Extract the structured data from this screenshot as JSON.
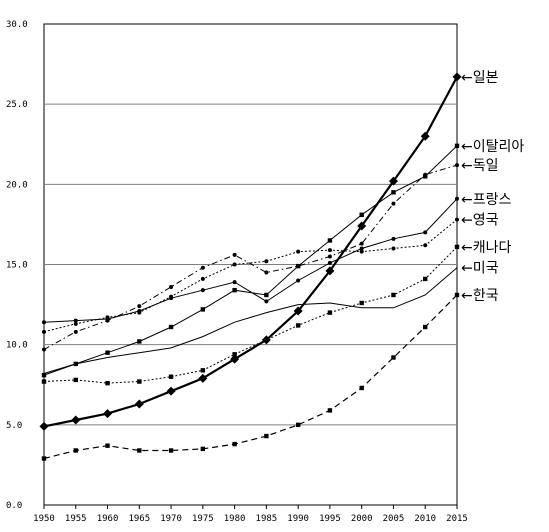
{
  "chart_data": {
    "type": "line",
    "title": "",
    "xlabel": "",
    "ylabel": "",
    "x": [
      1950,
      1955,
      1960,
      1965,
      1970,
      1975,
      1980,
      1985,
      1990,
      1995,
      2000,
      2005,
      2010,
      2015
    ],
    "x_ticks": [
      "1950",
      "1955",
      "1960",
      "1965",
      "1970",
      "1975",
      "1980",
      "1985",
      "1990",
      "1995",
      "2000",
      "2005",
      "2010",
      "2015"
    ],
    "y_ticks": [
      "0.0",
      "5.0",
      "10.0",
      "15.0",
      "20.0",
      "25.0",
      "30.0"
    ],
    "ylim": [
      0,
      30
    ],
    "grid": "horizontal",
    "legend": "right-end labels",
    "series": [
      {
        "name": "←일본",
        "style": "solid-bold",
        "marker": "diamond",
        "values": [
          4.9,
          5.3,
          5.7,
          6.3,
          7.1,
          7.9,
          9.1,
          10.3,
          12.1,
          14.6,
          17.4,
          20.2,
          23.0,
          26.7
        ]
      },
      {
        "name": "←이탈리아",
        "style": "solid",
        "marker": "square",
        "values": [
          8.1,
          8.8,
          9.5,
          10.2,
          11.1,
          12.2,
          13.4,
          13.1,
          14.9,
          16.5,
          18.1,
          19.5,
          20.5,
          22.4
        ]
      },
      {
        "name": "←독일",
        "style": "dashdot",
        "marker": "dot",
        "values": [
          9.7,
          10.8,
          11.5,
          12.4,
          13.6,
          14.8,
          15.6,
          14.5,
          14.9,
          15.5,
          16.3,
          18.8,
          20.6,
          21.2
        ]
      },
      {
        "name": "←프랑스",
        "style": "solid",
        "marker": "dot",
        "values": [
          11.4,
          11.5,
          11.6,
          12.1,
          12.9,
          13.4,
          13.9,
          12.7,
          14.0,
          15.1,
          16.0,
          16.6,
          17.0,
          19.1
        ]
      },
      {
        "name": "←영국",
        "style": "dotted",
        "marker": "dot",
        "values": [
          10.8,
          11.3,
          11.7,
          12.0,
          13.0,
          14.1,
          15.0,
          15.2,
          15.8,
          15.9,
          15.8,
          16.0,
          16.2,
          17.8
        ]
      },
      {
        "name": "←캐나다",
        "style": "dotted",
        "marker": "square",
        "values": [
          7.7,
          7.8,
          7.6,
          7.7,
          8.0,
          8.4,
          9.4,
          10.3,
          11.2,
          12.0,
          12.6,
          13.1,
          14.1,
          16.1
        ]
      },
      {
        "name": "←미국",
        "style": "solid",
        "marker": "none",
        "values": [
          8.2,
          8.8,
          9.2,
          9.5,
          9.8,
          10.5,
          11.4,
          12.0,
          12.5,
          12.6,
          12.3,
          12.3,
          13.1,
          14.8
        ]
      },
      {
        "name": "←한국",
        "style": "dashed",
        "marker": "square",
        "values": [
          2.9,
          3.4,
          3.7,
          3.4,
          3.4,
          3.5,
          3.8,
          4.3,
          5.0,
          5.9,
          7.3,
          9.2,
          11.1,
          13.1
        ]
      }
    ]
  },
  "end_label_positions": [
    26.7,
    22.4,
    21.2,
    19.1,
    17.8,
    16.1,
    14.8,
    13.1
  ]
}
